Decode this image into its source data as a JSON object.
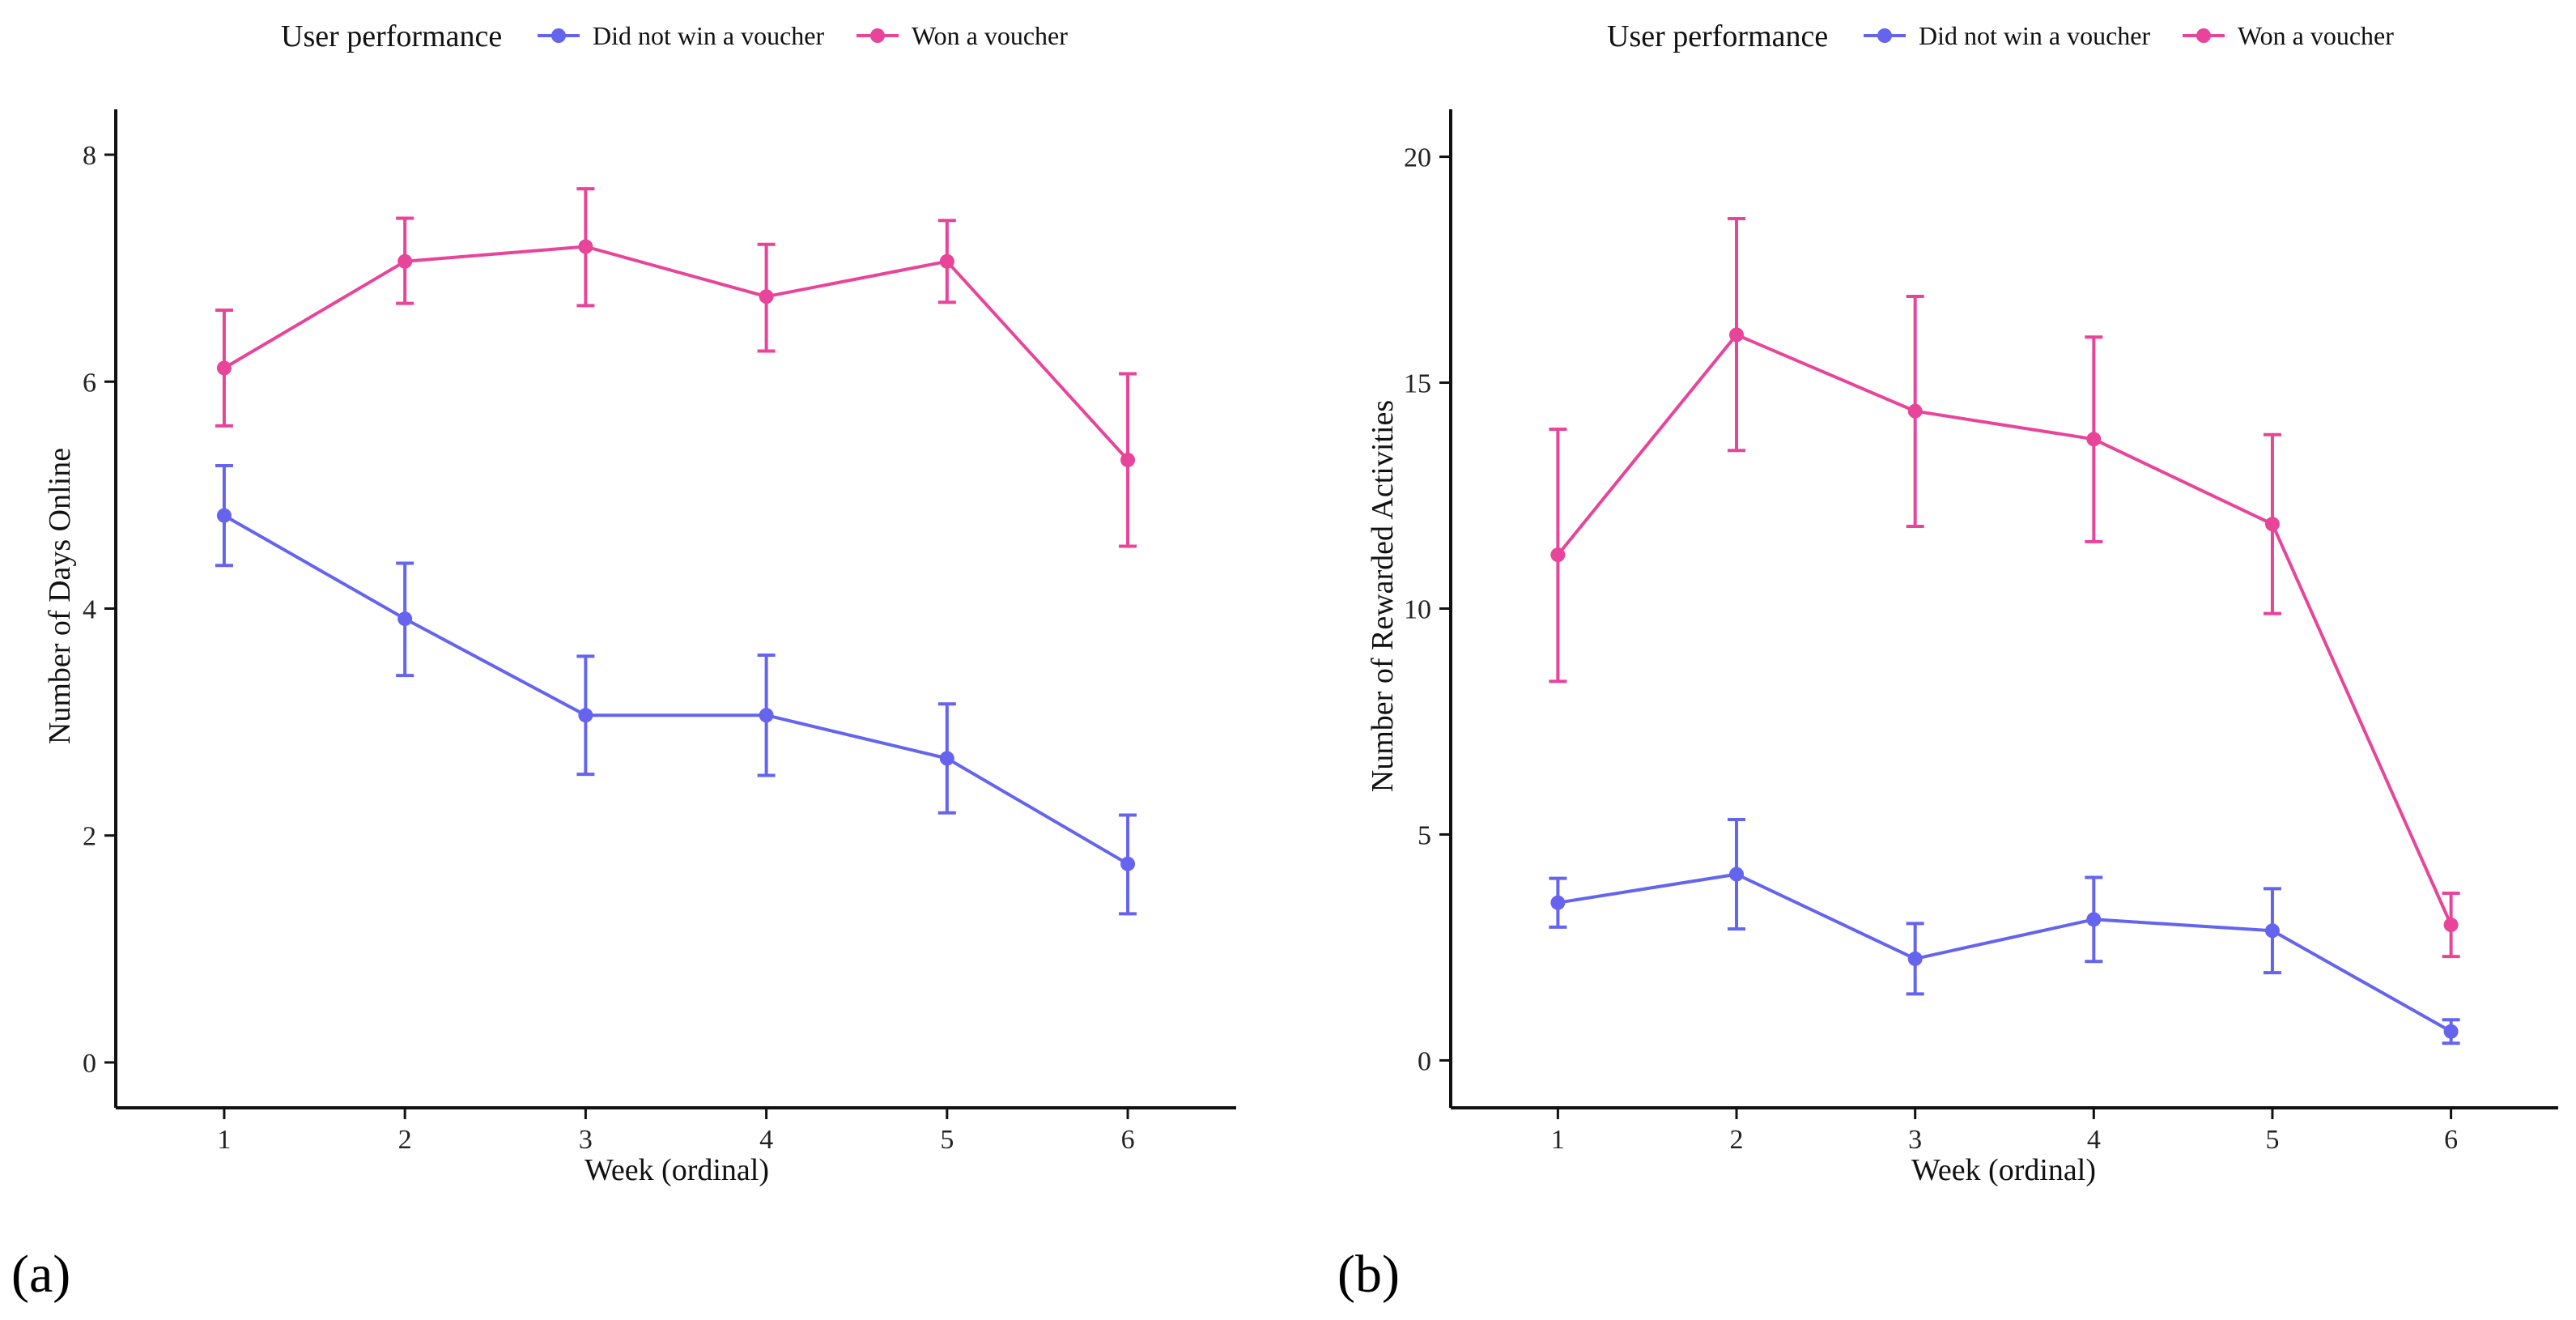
{
  "figure": {
    "panel_labels": [
      "(a)",
      "(b)"
    ]
  },
  "chart_data": [
    {
      "type": "line",
      "panel": "(a)",
      "title": "",
      "xlabel": "Week (ordinal)",
      "ylabel": "Number of Days Online",
      "categories": [
        "1",
        "2",
        "3",
        "4",
        "5",
        "6"
      ],
      "x": [
        1,
        2,
        3,
        4,
        5,
        6
      ],
      "xlim": [
        0.4,
        6.6
      ],
      "ylim": [
        -0.4,
        8.4
      ],
      "yticks": [
        0,
        2,
        4,
        6,
        8
      ],
      "ytick_labels": [
        "0",
        "2",
        "4",
        "6",
        "8"
      ],
      "grid": false,
      "legend": {
        "title": "User performance",
        "position": "top",
        "labels": [
          "Did not win a voucher",
          "Won a voucher"
        ]
      },
      "series": [
        {
          "name": "Did not win a voucher",
          "color": "#6464EE",
          "values": [
            4.82,
            3.91,
            3.06,
            3.06,
            2.68,
            1.75
          ],
          "lower": [
            4.38,
            3.41,
            2.54,
            2.53,
            2.2,
            1.31
          ],
          "upper": [
            5.26,
            4.4,
            3.58,
            3.59,
            3.16,
            2.18
          ]
        },
        {
          "name": "Won a voucher",
          "color": "#E8449A",
          "values": [
            6.12,
            7.06,
            7.19,
            6.75,
            7.06,
            5.31
          ],
          "lower": [
            5.61,
            6.69,
            6.67,
            6.27,
            6.7,
            4.55
          ],
          "upper": [
            6.63,
            7.44,
            7.7,
            7.21,
            7.42,
            6.07
          ]
        }
      ]
    },
    {
      "type": "line",
      "panel": "(b)",
      "title": "",
      "xlabel": "Week (ordinal)",
      "ylabel": "Number of Rewarded Activities",
      "categories": [
        "1",
        "2",
        "3",
        "4",
        "5",
        "6"
      ],
      "x": [
        1,
        2,
        3,
        4,
        5,
        6
      ],
      "xlim": [
        0.4,
        6.6
      ],
      "ylim": [
        -1.05,
        21.05
      ],
      "yticks": [
        0,
        5,
        10,
        15,
        20
      ],
      "ytick_labels": [
        "0",
        "5",
        "10",
        "15",
        "20"
      ],
      "grid": false,
      "legend": {
        "title": "User performance",
        "position": "top",
        "labels": [
          "Did not win a voucher",
          "Won a voucher"
        ]
      },
      "series": [
        {
          "name": "Did not win a voucher",
          "color": "#6464EE",
          "values": [
            3.49,
            4.12,
            2.25,
            3.12,
            2.87,
            0.64
          ],
          "lower": [
            2.95,
            2.91,
            1.47,
            2.19,
            1.94,
            0.38
          ],
          "upper": [
            4.03,
            5.33,
            3.03,
            4.05,
            3.8,
            0.9
          ]
        },
        {
          "name": "Won a voucher",
          "color": "#E8449A",
          "values": [
            11.19,
            16.06,
            14.37,
            13.75,
            11.87,
            3.0
          ],
          "lower": [
            8.39,
            13.5,
            11.82,
            11.48,
            9.89,
            2.3
          ],
          "upper": [
            13.97,
            18.63,
            16.91,
            16.01,
            13.85,
            3.7
          ]
        }
      ]
    }
  ]
}
